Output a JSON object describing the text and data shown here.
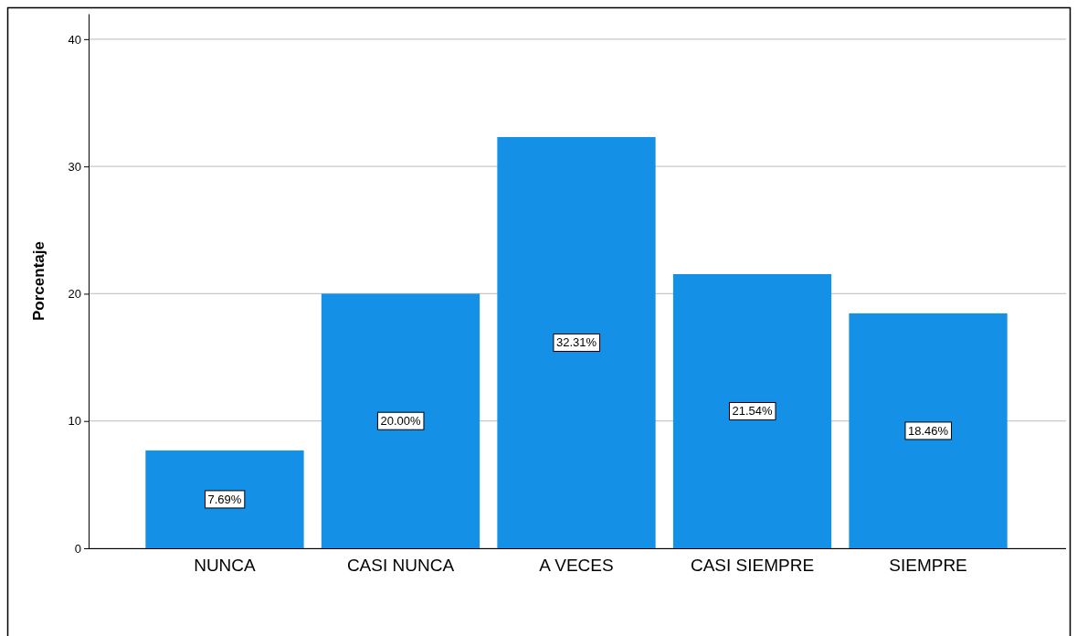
{
  "chart_data": {
    "type": "bar",
    "ylabel": "Porcentaje",
    "categories": [
      "NUNCA",
      "CASI NUNCA",
      "A VECES",
      "CASI SIEMPRE",
      "SIEMPRE"
    ],
    "values": [
      7.69,
      20.0,
      32.31,
      21.54,
      18.46
    ],
    "value_labels": [
      "7.69%",
      "20.00%",
      "32.31%",
      "21.54%",
      "18.46%"
    ],
    "color": "#1490e6",
    "ylim": [
      0,
      42
    ],
    "yticks": [
      0,
      10,
      20,
      30,
      40
    ],
    "grid": "y"
  }
}
